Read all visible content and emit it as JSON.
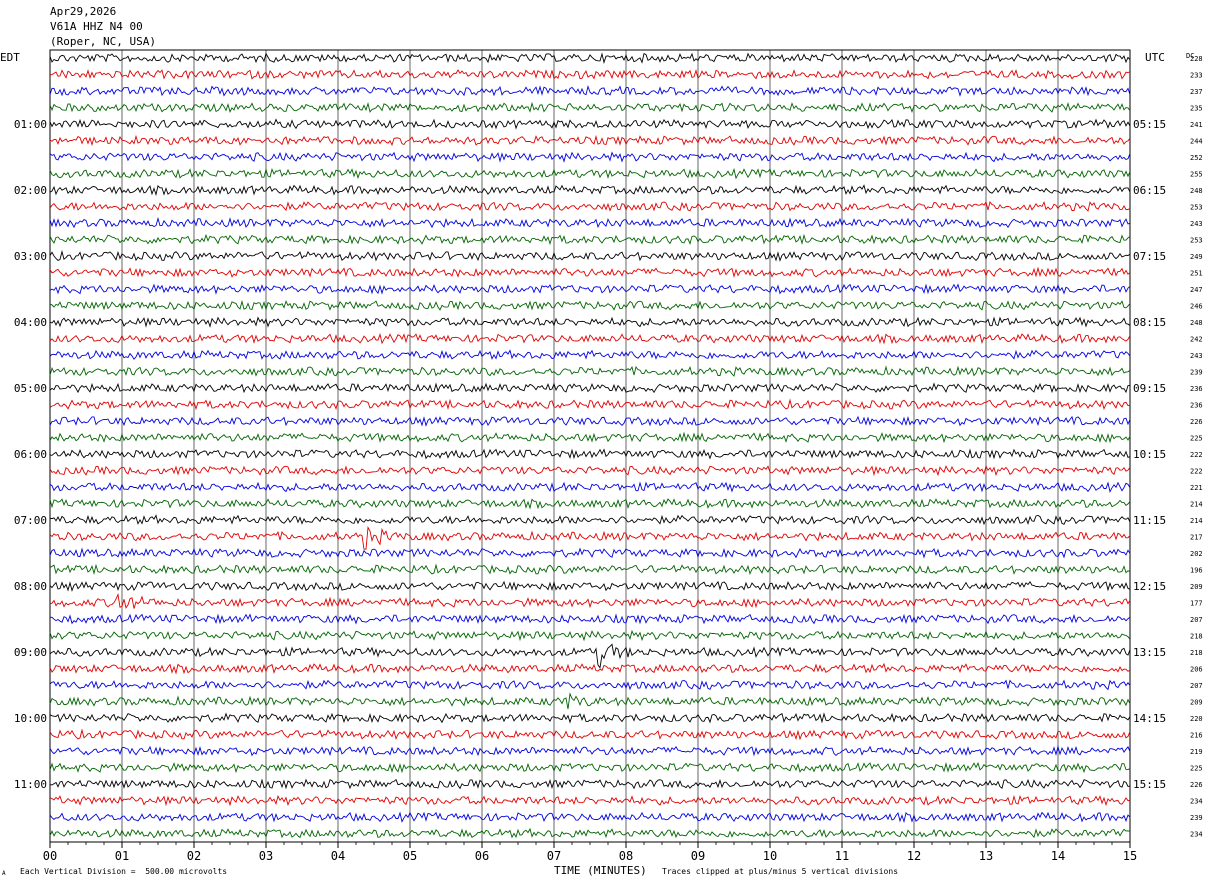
{
  "header": {
    "date": "Apr29,2026",
    "station": "V61A HHZ N4 00",
    "location": "(Roper, NC, USA)"
  },
  "left_zone_label": "EDT",
  "right_zone_label": "UTC",
  "dc_label": "DC",
  "footer": {
    "scale_note": "Each Vertical Division =  500.00 microvolts",
    "clip_note": "Traces clipped at plus/minus 5 vertical divisions",
    "corner_mark": "A"
  },
  "chart_data": {
    "type": "line",
    "title": "",
    "xlabel": "TIME (MINUTES)",
    "ylabel": "",
    "xlim": [
      0,
      15
    ],
    "x_ticks": [
      "00",
      "01",
      "02",
      "03",
      "04",
      "05",
      "06",
      "07",
      "08",
      "09",
      "10",
      "11",
      "12",
      "13",
      "14",
      "15"
    ],
    "trace_count": 48,
    "trace_colors": [
      "#000000",
      "#e00000",
      "#0000e0",
      "#006400"
    ],
    "left_hour_labels": [
      "01:00",
      "02:00",
      "03:00",
      "04:00",
      "05:00",
      "06:00",
      "07:00",
      "08:00",
      "09:00",
      "10:00",
      "11:00"
    ],
    "right_hour_labels": [
      "05:15",
      "06:15",
      "07:15",
      "08:15",
      "09:15",
      "10:15",
      "11:15",
      "12:15",
      "13:15",
      "14:15",
      "15:15"
    ],
    "dc_offsets": [
      228,
      233,
      237,
      235,
      241,
      244,
      252,
      255,
      248,
      253,
      243,
      253,
      249,
      251,
      247,
      246,
      248,
      242,
      243,
      239,
      236,
      236,
      226,
      225,
      222,
      222,
      221,
      214,
      214,
      217,
      202,
      196,
      209,
      177,
      207,
      218,
      218,
      206,
      207,
      209,
      220,
      216,
      219,
      225,
      226,
      234,
      239,
      234
    ],
    "events": [
      {
        "trace": 29,
        "minute": 4.4,
        "amplitude": 2.2
      },
      {
        "trace": 33,
        "minute": 0.95,
        "amplitude": 2.6
      },
      {
        "trace": 36,
        "minute": 7.65,
        "amplitude": 3.0
      },
      {
        "trace": 39,
        "minute": 7.15,
        "amplitude": 1.8
      }
    ]
  }
}
